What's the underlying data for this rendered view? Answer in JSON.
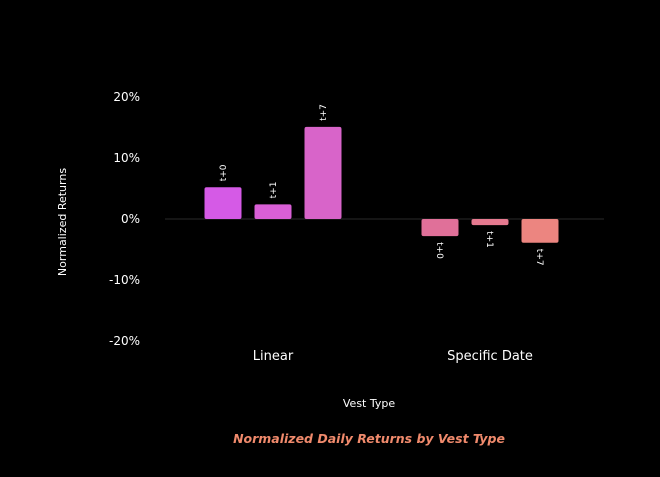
{
  "chart_data": {
    "type": "bar",
    "title": "Normalized Daily Returns by Vest Type",
    "xlabel": "Vest Type",
    "ylabel": "Normalized Returns",
    "categories": [
      "Linear",
      "Specific Date"
    ],
    "series": [
      {
        "name": "t+0",
        "values": [
          5.2,
          -2.8
        ]
      },
      {
        "name": "t+1",
        "values": [
          2.4,
          -1.0
        ]
      },
      {
        "name": "t+7",
        "values": [
          15.1,
          -3.9
        ]
      }
    ],
    "ylim": [
      -20,
      20
    ],
    "yticks": [
      20,
      10,
      0,
      -10,
      -20
    ],
    "ytick_labels": [
      "20%",
      "10%",
      "0%",
      "-10%",
      "-20%"
    ],
    "grid": false,
    "legend": "none",
    "bar_labels_rotated": true,
    "colors": {
      "background": "#000000",
      "text": "#ffffff",
      "title": "#f08a6c",
      "zero_line": "#2a2a2a",
      "bars": [
        [
          "#d55ae6",
          "#d95fd6",
          "#d864c9"
        ],
        [
          "#e07099",
          "#e67a90",
          "#ec8580"
        ]
      ]
    }
  }
}
